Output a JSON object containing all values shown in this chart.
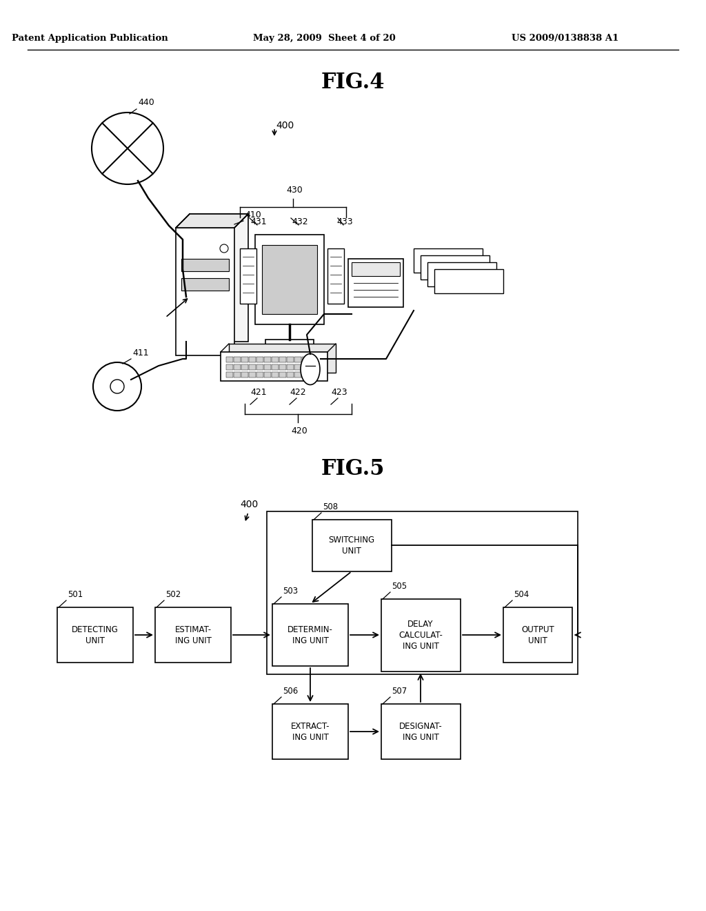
{
  "header_left": "Patent Application Publication",
  "header_mid": "May 28, 2009  Sheet 4 of 20",
  "header_right": "US 2009/0138838 A1",
  "fig4_title": "FIG.4",
  "fig5_title": "FIG.5",
  "bg_color": "#ffffff"
}
